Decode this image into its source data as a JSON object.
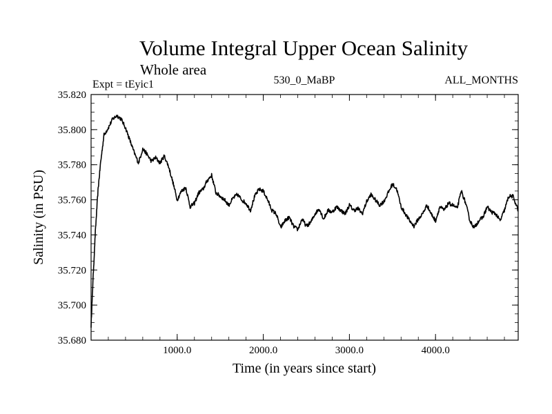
{
  "chart_data": {
    "type": "line",
    "title": "Volume Integral Upper Ocean Salinity",
    "subtitle": "Whole area",
    "header_left": "Expt = tEyic1",
    "header_center": "530_0_MaBP",
    "header_right": "ALL_MONTHS",
    "xlabel": "Time (in years since start)",
    "ylabel": "Salinity (in PSU)",
    "xlim": [
      0,
      4960
    ],
    "ylim": [
      35.68,
      35.82
    ],
    "x_ticks": [
      1000,
      2000,
      3000,
      4000
    ],
    "x_tick_labels": [
      "1000.0",
      "2000.0",
      "3000.0",
      "4000.0"
    ],
    "y_ticks": [
      35.68,
      35.7,
      35.72,
      35.74,
      35.76,
      35.78,
      35.8,
      35.82
    ],
    "y_tick_labels": [
      "35.680",
      "35.700",
      "35.720",
      "35.740",
      "35.760",
      "35.780",
      "35.800",
      "35.820"
    ],
    "grid": false,
    "series": [
      {
        "name": "Salinity",
        "color": "#000000",
        "x": [
          0,
          20,
          50,
          80,
          110,
          150,
          200,
          250,
          300,
          350,
          400,
          450,
          500,
          550,
          600,
          650,
          700,
          750,
          800,
          850,
          900,
          950,
          1000,
          1050,
          1100,
          1150,
          1200,
          1250,
          1300,
          1350,
          1400,
          1450,
          1500,
          1550,
          1600,
          1650,
          1700,
          1750,
          1800,
          1850,
          1900,
          1950,
          2000,
          2050,
          2100,
          2150,
          2200,
          2250,
          2300,
          2350,
          2400,
          2450,
          2500,
          2550,
          2600,
          2650,
          2700,
          2750,
          2800,
          2850,
          2900,
          2950,
          3000,
          3050,
          3100,
          3150,
          3200,
          3250,
          3300,
          3350,
          3400,
          3450,
          3500,
          3550,
          3600,
          3650,
          3700,
          3750,
          3800,
          3850,
          3900,
          3950,
          4000,
          4050,
          4100,
          4150,
          4200,
          4250,
          4300,
          4350,
          4400,
          4450,
          4500,
          4550,
          4600,
          4650,
          4700,
          4750,
          4800,
          4850,
          4900,
          4960
        ],
        "y": [
          35.688,
          35.712,
          35.742,
          35.765,
          35.781,
          35.797,
          35.801,
          35.806,
          35.808,
          35.806,
          35.801,
          35.794,
          35.787,
          35.781,
          35.789,
          35.786,
          35.782,
          35.784,
          35.781,
          35.785,
          35.779,
          35.77,
          35.76,
          35.765,
          35.767,
          35.756,
          35.758,
          35.764,
          35.766,
          35.771,
          35.774,
          35.764,
          35.762,
          35.76,
          35.757,
          35.761,
          35.763,
          35.76,
          35.758,
          35.754,
          35.762,
          35.766,
          35.765,
          35.76,
          35.754,
          35.752,
          35.744,
          35.748,
          35.75,
          35.745,
          35.743,
          35.749,
          35.745,
          35.747,
          35.752,
          35.755,
          35.749,
          35.754,
          35.753,
          35.756,
          35.754,
          35.752,
          35.757,
          35.754,
          35.755,
          35.752,
          35.759,
          35.763,
          35.76,
          35.757,
          35.759,
          35.764,
          35.769,
          35.766,
          35.756,
          35.752,
          35.748,
          35.745,
          35.749,
          35.752,
          35.757,
          35.752,
          35.748,
          35.756,
          35.754,
          35.758,
          35.757,
          35.755,
          35.765,
          35.758,
          35.748,
          35.744,
          35.748,
          35.75,
          35.756,
          35.753,
          35.752,
          35.748,
          35.754,
          35.762,
          35.762,
          35.754
        ]
      }
    ]
  }
}
